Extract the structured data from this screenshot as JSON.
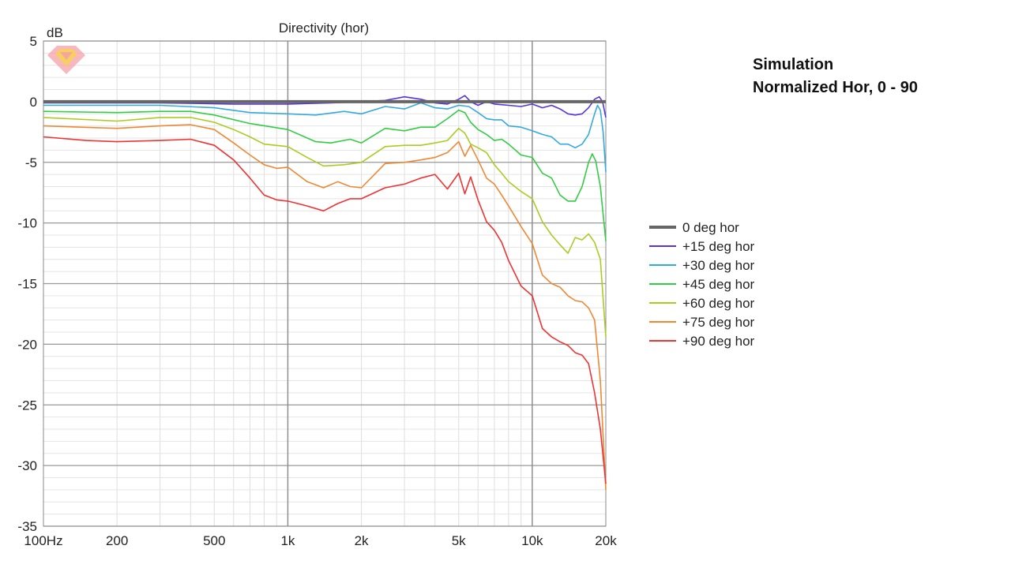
{
  "annotation": {
    "line1": "Simulation",
    "line2": "Normalized Hor, 0 - 90"
  },
  "logo": {
    "name": "diamond-logo",
    "colors": [
      "#f4a0a8",
      "#f7d44a"
    ]
  },
  "chart_data": {
    "type": "line",
    "title": "Directivity (hor)",
    "ylabel": "dB",
    "xlabel": "",
    "xscale": "log",
    "xlim": [
      100,
      20000
    ],
    "ylim": [
      -35,
      5
    ],
    "grid": true,
    "legend_position": "right",
    "x_ticks": [
      {
        "value": 100,
        "label": "100Hz"
      },
      {
        "value": 200,
        "label": "200"
      },
      {
        "value": 500,
        "label": "500"
      },
      {
        "value": 1000,
        "label": "1k"
      },
      {
        "value": 2000,
        "label": "2k"
      },
      {
        "value": 5000,
        "label": "5k"
      },
      {
        "value": 10000,
        "label": "10k"
      },
      {
        "value": 20000,
        "label": "20k"
      }
    ],
    "y_ticks": [
      5,
      0,
      -5,
      -10,
      -15,
      -20,
      -25,
      -30,
      -35
    ],
    "series": [
      {
        "name": "0 deg hor",
        "color": "#666666",
        "points": [
          [
            100,
            0
          ],
          [
            20000,
            0
          ]
        ]
      },
      {
        "name": "+15 deg hor",
        "color": "#5533dd",
        "points": [
          [
            100,
            -0.1
          ],
          [
            300,
            -0.1
          ],
          [
            600,
            -0.2
          ],
          [
            1000,
            -0.2
          ],
          [
            1500,
            -0.1
          ],
          [
            2000,
            0
          ],
          [
            2500,
            0.1
          ],
          [
            3000,
            0.4
          ],
          [
            3500,
            0.2
          ],
          [
            4000,
            -0.1
          ],
          [
            4500,
            -0.2
          ],
          [
            5000,
            0.2
          ],
          [
            5300,
            0.5
          ],
          [
            5600,
            0
          ],
          [
            6000,
            -0.3
          ],
          [
            6500,
            0
          ],
          [
            7000,
            -0.2
          ],
          [
            8000,
            -0.3
          ],
          [
            9000,
            -0.4
          ],
          [
            10000,
            -0.2
          ],
          [
            11000,
            -0.5
          ],
          [
            12000,
            -0.3
          ],
          [
            13000,
            -0.6
          ],
          [
            14000,
            -1.0
          ],
          [
            15000,
            -1.1
          ],
          [
            16000,
            -1.0
          ],
          [
            17000,
            -0.5
          ],
          [
            18000,
            0.2
          ],
          [
            18800,
            0.4
          ],
          [
            19400,
            0
          ],
          [
            20000,
            -1.3
          ]
        ]
      },
      {
        "name": "+30 deg hor",
        "color": "#33aadd",
        "points": [
          [
            100,
            -0.3
          ],
          [
            300,
            -0.3
          ],
          [
            500,
            -0.5
          ],
          [
            700,
            -0.9
          ],
          [
            1000,
            -1.0
          ],
          [
            1300,
            -1.1
          ],
          [
            1700,
            -0.8
          ],
          [
            2000,
            -1.0
          ],
          [
            2500,
            -0.4
          ],
          [
            3000,
            -0.6
          ],
          [
            3500,
            -0.1
          ],
          [
            4000,
            -0.5
          ],
          [
            4500,
            -0.6
          ],
          [
            5000,
            -0.3
          ],
          [
            5500,
            -0.4
          ],
          [
            6000,
            -0.9
          ],
          [
            6500,
            -1.4
          ],
          [
            7000,
            -1.5
          ],
          [
            7500,
            -1.5
          ],
          [
            8000,
            -2.0
          ],
          [
            9000,
            -2.1
          ],
          [
            10000,
            -2.4
          ],
          [
            11000,
            -2.7
          ],
          [
            12000,
            -2.9
          ],
          [
            13000,
            -3.5
          ],
          [
            14000,
            -3.5
          ],
          [
            15000,
            -3.8
          ],
          [
            16000,
            -3.5
          ],
          [
            17000,
            -2.7
          ],
          [
            18000,
            -1.0
          ],
          [
            18500,
            -0.3
          ],
          [
            19000,
            -0.7
          ],
          [
            19500,
            -2.5
          ],
          [
            20000,
            -5.8
          ]
        ]
      },
      {
        "name": "+45 deg hor",
        "color": "#33cc44",
        "points": [
          [
            100,
            -0.8
          ],
          [
            200,
            -0.9
          ],
          [
            300,
            -0.8
          ],
          [
            400,
            -0.8
          ],
          [
            500,
            -1.1
          ],
          [
            700,
            -1.8
          ],
          [
            1000,
            -2.3
          ],
          [
            1300,
            -3.3
          ],
          [
            1500,
            -3.4
          ],
          [
            1800,
            -3.1
          ],
          [
            2000,
            -3.4
          ],
          [
            2500,
            -2.2
          ],
          [
            3000,
            -2.4
          ],
          [
            3500,
            -2.1
          ],
          [
            4000,
            -2.1
          ],
          [
            4500,
            -1.4
          ],
          [
            5000,
            -0.7
          ],
          [
            5300,
            -0.9
          ],
          [
            5600,
            -1.7
          ],
          [
            6000,
            -2.3
          ],
          [
            6500,
            -2.7
          ],
          [
            7000,
            -3.2
          ],
          [
            7500,
            -3.1
          ],
          [
            8000,
            -3.5
          ],
          [
            9000,
            -4.4
          ],
          [
            10000,
            -4.6
          ],
          [
            11000,
            -5.9
          ],
          [
            12000,
            -6.3
          ],
          [
            13000,
            -7.7
          ],
          [
            14000,
            -8.2
          ],
          [
            15000,
            -8.2
          ],
          [
            16000,
            -7.0
          ],
          [
            17000,
            -5.0
          ],
          [
            17600,
            -4.3
          ],
          [
            18200,
            -4.9
          ],
          [
            19000,
            -7.0
          ],
          [
            20000,
            -11.5
          ]
        ]
      },
      {
        "name": "+60 deg hor",
        "color": "#aacc22",
        "points": [
          [
            100,
            -1.3
          ],
          [
            200,
            -1.6
          ],
          [
            300,
            -1.3
          ],
          [
            400,
            -1.3
          ],
          [
            500,
            -1.7
          ],
          [
            600,
            -2.3
          ],
          [
            700,
            -2.9
          ],
          [
            800,
            -3.5
          ],
          [
            1000,
            -3.7
          ],
          [
            1200,
            -4.6
          ],
          [
            1400,
            -5.3
          ],
          [
            1700,
            -5.2
          ],
          [
            2000,
            -5.0
          ],
          [
            2500,
            -3.7
          ],
          [
            3000,
            -3.6
          ],
          [
            3500,
            -3.6
          ],
          [
            4000,
            -3.4
          ],
          [
            4500,
            -3.2
          ],
          [
            5000,
            -2.2
          ],
          [
            5300,
            -2.6
          ],
          [
            5600,
            -3.5
          ],
          [
            6000,
            -3.8
          ],
          [
            6500,
            -4.2
          ],
          [
            7000,
            -5.2
          ],
          [
            7500,
            -5.9
          ],
          [
            8000,
            -6.6
          ],
          [
            9000,
            -7.4
          ],
          [
            10000,
            -8.0
          ],
          [
            11000,
            -9.9
          ],
          [
            12000,
            -11.0
          ],
          [
            13000,
            -11.8
          ],
          [
            14000,
            -12.5
          ],
          [
            15000,
            -11.2
          ],
          [
            16000,
            -11.4
          ],
          [
            17000,
            -10.9
          ],
          [
            18000,
            -11.6
          ],
          [
            19000,
            -13.0
          ],
          [
            20000,
            -19.4
          ]
        ]
      },
      {
        "name": "+75 deg hor",
        "color": "#ee8833",
        "points": [
          [
            100,
            -2.0
          ],
          [
            200,
            -2.2
          ],
          [
            300,
            -2.0
          ],
          [
            400,
            -1.9
          ],
          [
            500,
            -2.3
          ],
          [
            600,
            -3.4
          ],
          [
            700,
            -4.4
          ],
          [
            800,
            -5.2
          ],
          [
            900,
            -5.5
          ],
          [
            1000,
            -5.4
          ],
          [
            1200,
            -6.6
          ],
          [
            1400,
            -7.1
          ],
          [
            1600,
            -6.6
          ],
          [
            1800,
            -7.0
          ],
          [
            2000,
            -7.1
          ],
          [
            2500,
            -5.1
          ],
          [
            3000,
            -5.0
          ],
          [
            3500,
            -4.8
          ],
          [
            4000,
            -4.6
          ],
          [
            4500,
            -4.2
          ],
          [
            5000,
            -3.3
          ],
          [
            5300,
            -4.5
          ],
          [
            5600,
            -3.6
          ],
          [
            6000,
            -4.8
          ],
          [
            6500,
            -6.3
          ],
          [
            7000,
            -6.8
          ],
          [
            7500,
            -7.7
          ],
          [
            8000,
            -8.6
          ],
          [
            9000,
            -10.3
          ],
          [
            10000,
            -11.7
          ],
          [
            11000,
            -14.3
          ],
          [
            12000,
            -15.0
          ],
          [
            13000,
            -15.3
          ],
          [
            14000,
            -16.0
          ],
          [
            15000,
            -16.4
          ],
          [
            16000,
            -16.5
          ],
          [
            17000,
            -17.0
          ],
          [
            18000,
            -18.0
          ],
          [
            19000,
            -23.0
          ],
          [
            20000,
            -32.0
          ]
        ]
      },
      {
        "name": "+90 deg hor",
        "color": "#ee3333",
        "points": [
          [
            100,
            -2.9
          ],
          [
            150,
            -3.2
          ],
          [
            200,
            -3.3
          ],
          [
            300,
            -3.2
          ],
          [
            400,
            -3.1
          ],
          [
            500,
            -3.6
          ],
          [
            600,
            -4.8
          ],
          [
            700,
            -6.3
          ],
          [
            800,
            -7.7
          ],
          [
            900,
            -8.1
          ],
          [
            1000,
            -8.2
          ],
          [
            1200,
            -8.6
          ],
          [
            1400,
            -9.0
          ],
          [
            1600,
            -8.4
          ],
          [
            1800,
            -8.0
          ],
          [
            2000,
            -8.0
          ],
          [
            2500,
            -7.1
          ],
          [
            3000,
            -6.8
          ],
          [
            3500,
            -6.3
          ],
          [
            4000,
            -6.0
          ],
          [
            4500,
            -7.2
          ],
          [
            5000,
            -5.9
          ],
          [
            5300,
            -7.6
          ],
          [
            5600,
            -6.2
          ],
          [
            6000,
            -8.1
          ],
          [
            6500,
            -9.9
          ],
          [
            7000,
            -10.6
          ],
          [
            7500,
            -11.6
          ],
          [
            8000,
            -13.1
          ],
          [
            9000,
            -15.2
          ],
          [
            10000,
            -16.0
          ],
          [
            11000,
            -18.7
          ],
          [
            12000,
            -19.4
          ],
          [
            13000,
            -19.8
          ],
          [
            14000,
            -20.1
          ],
          [
            15000,
            -20.7
          ],
          [
            16000,
            -20.9
          ],
          [
            17000,
            -21.6
          ],
          [
            18000,
            -24.0
          ],
          [
            19000,
            -27.0
          ],
          [
            20000,
            -31.5
          ]
        ]
      }
    ]
  }
}
